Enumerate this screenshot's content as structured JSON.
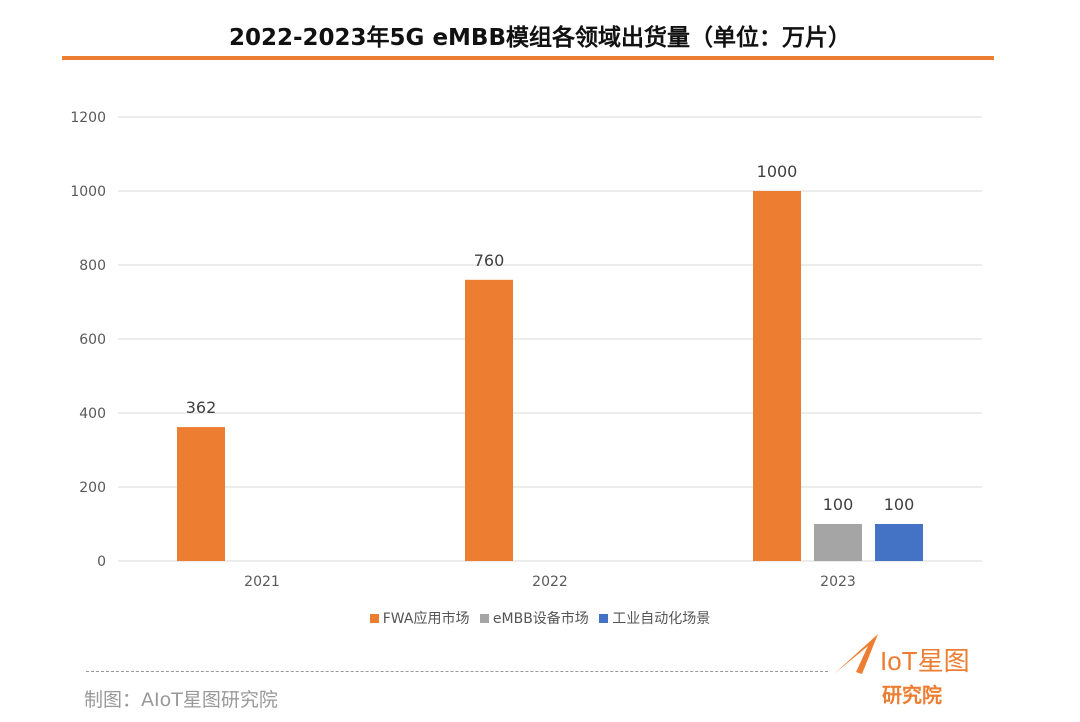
{
  "title": "2022-2023年5G eMBB模组各领域出货量（单位：万片）",
  "chart_data": {
    "type": "bar",
    "title": "2022-2023年5G eMBB模组各领域出货量（单位：万片）",
    "categories": [
      "2021",
      "2022",
      "2023"
    ],
    "series": [
      {
        "name": "FWA应用市场",
        "color": "#ED7D31",
        "values": [
          362,
          760,
          1000
        ]
      },
      {
        "name": "eMBB设备市场",
        "color": "#A5A5A5",
        "values": [
          null,
          null,
          100
        ]
      },
      {
        "name": "工业自动化场景",
        "color": "#4472C4",
        "values": [
          null,
          null,
          100
        ]
      }
    ],
    "yticks": [
      0,
      200,
      400,
      600,
      800,
      1000,
      1200
    ],
    "ylim": [
      0,
      1200
    ],
    "grid": true,
    "legend": "bottom",
    "data_labels": true
  },
  "footer": {
    "credit": "制图：AIoT星图研究院",
    "logo_text": "AIoT星图研究院"
  },
  "colors": {
    "accent": "#ED7D31"
  }
}
